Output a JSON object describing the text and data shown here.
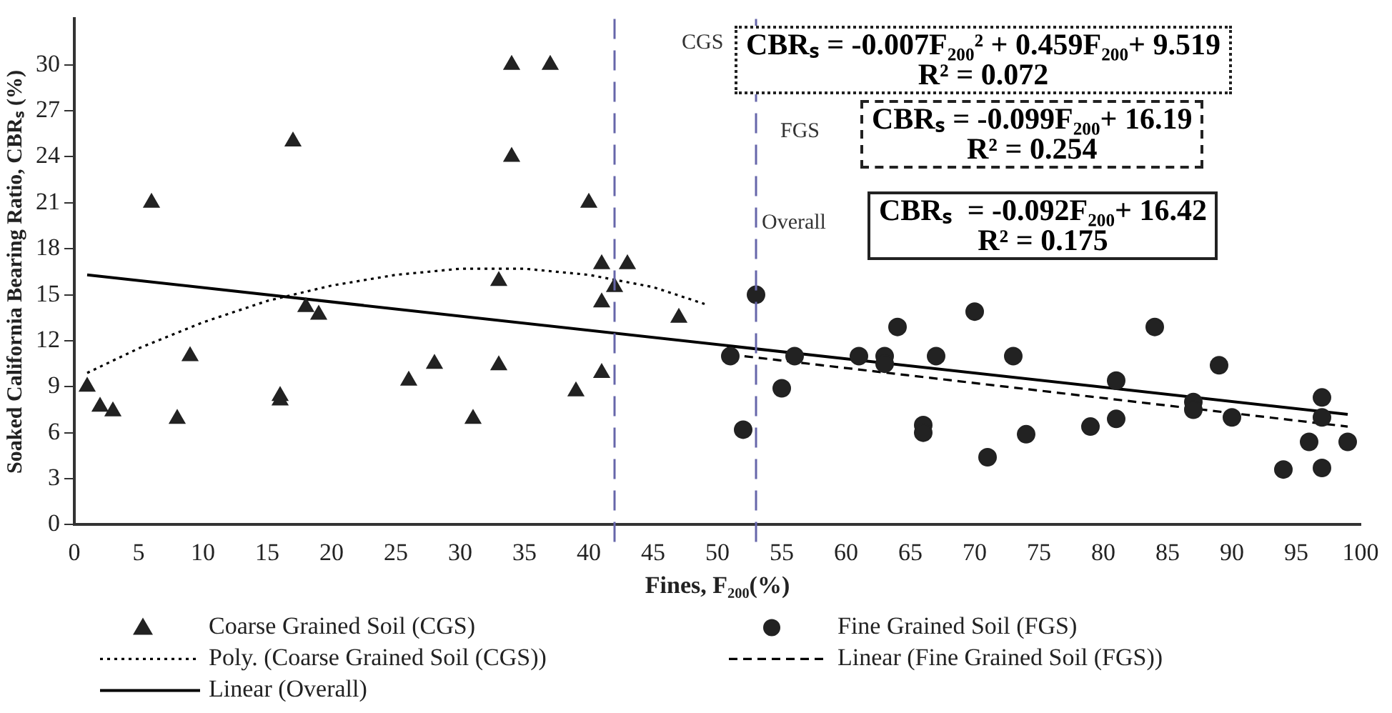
{
  "chart_data": {
    "type": "scatter",
    "xlabel": "Fines, F₂₀₀(%)",
    "ylabel": "Soaked California Bearing Ratio, CBRₛ (%)",
    "xlim": [
      0,
      100
    ],
    "xticks": [
      0,
      5,
      10,
      15,
      20,
      25,
      30,
      35,
      40,
      45,
      50,
      55,
      60,
      65,
      70,
      75,
      80,
      85,
      90,
      95,
      100
    ],
    "ylim": [
      0,
      33
    ],
    "yticks": [
      0,
      3,
      6,
      9,
      12,
      15,
      18,
      21,
      24,
      27,
      30
    ],
    "grid": false,
    "legend": "bottom",
    "series": [
      {
        "name": "Coarse Grained Soil (CGS)",
        "type": "scatter",
        "marker": "triangle",
        "color": "#222222",
        "x": [
          1,
          2,
          3,
          6,
          8,
          9,
          16,
          16,
          17,
          18,
          19,
          26,
          28,
          31,
          33,
          33,
          34,
          34,
          37,
          39,
          40,
          41,
          41,
          41,
          42,
          43,
          47
        ],
        "values": [
          9,
          7.7,
          7.4,
          21,
          6.9,
          11,
          8.4,
          8.1,
          25,
          14.2,
          13.7,
          9.4,
          10.5,
          6.9,
          15.9,
          10.4,
          30,
          24,
          30,
          8.7,
          21,
          17,
          14.5,
          9.9,
          15.5,
          17,
          13.5
        ]
      },
      {
        "name": "Fine Grained Soil (FGS)",
        "type": "scatter",
        "marker": "circle",
        "color": "#222222",
        "x": [
          51,
          52,
          53,
          55,
          56,
          61,
          63,
          63,
          64,
          66,
          66,
          67,
          70,
          71,
          73,
          74,
          79,
          81,
          81,
          84,
          87,
          87,
          89,
          90,
          94,
          96,
          97,
          97,
          97,
          99
        ],
        "values": [
          11,
          6.2,
          15,
          8.9,
          11,
          11,
          11,
          10.5,
          12.9,
          6.5,
          6,
          11,
          13.9,
          4.4,
          11,
          5.9,
          6.4,
          9.4,
          6.9,
          12.9,
          8,
          7.5,
          10.4,
          7,
          3.6,
          5.4,
          8.3,
          7,
          3.7,
          5.4
        ]
      },
      {
        "name": "Poly. (Coarse Grained Soil (CGS))",
        "type": "line",
        "marker": "none",
        "line_style": "dotted",
        "color": "#000000",
        "x": [
          1,
          5,
          10,
          15,
          20,
          25,
          30,
          35,
          40,
          45,
          49
        ],
        "values": [
          9.9,
          11.5,
          13.2,
          14.6,
          15.6,
          16.3,
          16.7,
          16.7,
          16.3,
          15.5,
          14.4
        ]
      },
      {
        "name": "Linear (Fine Grained Soil (FGS))",
        "type": "line",
        "marker": "none",
        "line_style": "dashed",
        "color": "#000000",
        "x": [
          51,
          99
        ],
        "values": [
          11.1,
          6.4
        ]
      },
      {
        "name": "Linear (Overall)",
        "type": "line",
        "marker": "none",
        "line_style": "solid",
        "color": "#000000",
        "x": [
          1,
          99
        ],
        "values": [
          16.3,
          7.2
        ]
      }
    ],
    "ref_lines": [
      {
        "axis": "x",
        "value": 42,
        "color": "#6666aa",
        "line_style": "dashed"
      },
      {
        "axis": "x",
        "value": 53,
        "color": "#6666aa",
        "line_style": "dashed"
      }
    ],
    "annotations": [
      "CGS",
      "CBRₛ = -0.007F₂₀₀² + 0.459F₂₀₀+ 9.519",
      "R² = 0.072",
      "FGS",
      "CBRₛ = -0.099F₂₀₀+ 16.19",
      "R² = 0.254",
      "Overall",
      "CBRₛ  = -0.092F₂₀₀+ 16.42",
      "R² = 0.175"
    ]
  }
}
